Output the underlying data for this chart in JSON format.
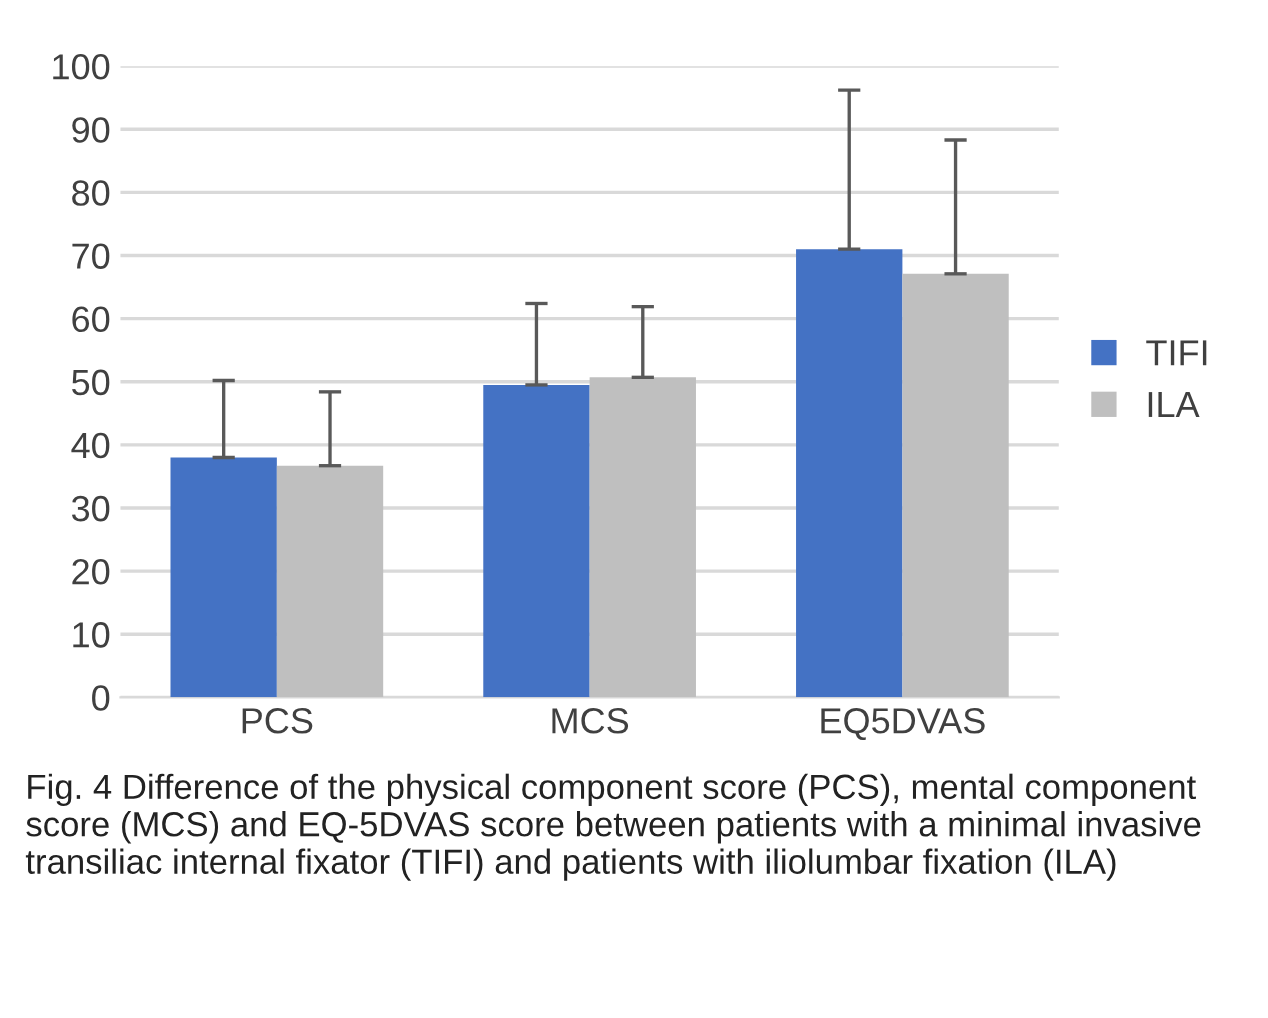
{
  "chart_data": {
    "type": "bar",
    "categories": [
      "PCS",
      "MCS",
      "EQ5DVAS"
    ],
    "series": [
      {
        "name": "TIFI",
        "color": "#4472c4",
        "values": [
          38.0,
          49.5,
          71.0
        ],
        "errors": [
          [
            38.0,
            50.2
          ],
          [
            49.5,
            62.4
          ],
          [
            71.0,
            96.2
          ]
        ]
      },
      {
        "name": "ILA",
        "color": "#bfbfbf",
        "values": [
          36.7,
          50.7,
          67.1
        ],
        "errors": [
          [
            36.7,
            48.4
          ],
          [
            50.7,
            61.9
          ],
          [
            67.1,
            88.3
          ]
        ]
      }
    ],
    "ylim": [
      0,
      100
    ],
    "yticks": [
      0,
      10,
      20,
      30,
      40,
      50,
      60,
      70,
      80,
      90,
      100
    ],
    "grid": "y",
    "legend": "right",
    "annotations": [
      "Fig. 4 Difference of the physical component score (PCS), mental component score (MCS) and EQ-5DVAS score between patients with a minimal invasive transiliac internal fixator (TIFI) and patients with iliolumbar fixation (ILA)"
    ]
  }
}
